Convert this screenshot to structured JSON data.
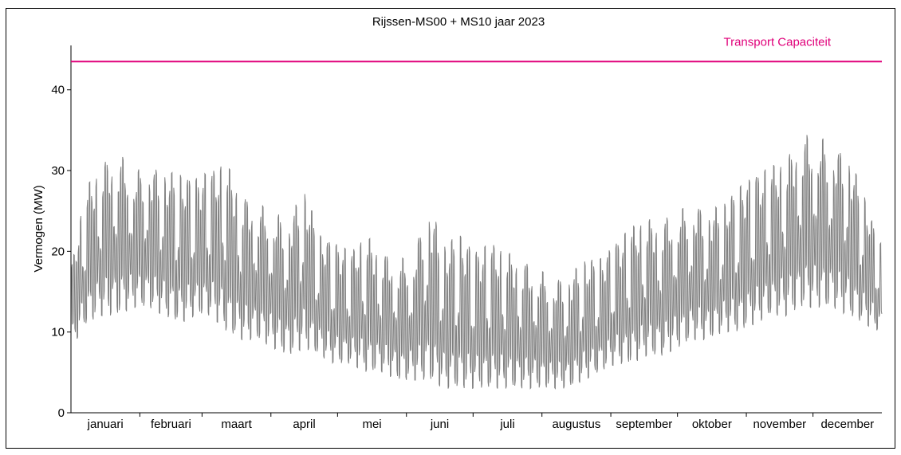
{
  "chart_data": {
    "type": "line",
    "title": "Rijssen-MS00 + MS10 jaar 2023",
    "xlabel": "",
    "ylabel": "Vermogen (MW)",
    "ylim": [
      0,
      45.5
    ],
    "yticks": [
      0,
      10,
      20,
      30,
      40
    ],
    "months": [
      "januari",
      "februari",
      "maart",
      "april",
      "mei",
      "juni",
      "juli",
      "augustus",
      "september",
      "oktober",
      "november",
      "december"
    ],
    "grid": false,
    "series": [
      {
        "name": "",
        "color": "#808080",
        "weekly_x_days": [
          0,
          7,
          14,
          21,
          28,
          35,
          42,
          49,
          56,
          63,
          70,
          77,
          84,
          91,
          98,
          105,
          112,
          119,
          126,
          133,
          140,
          147,
          154,
          161,
          168,
          175,
          182,
          189,
          196,
          203,
          210,
          217,
          224,
          231,
          238,
          245,
          252,
          259,
          266,
          273,
          280,
          287,
          294,
          301,
          308,
          315,
          322,
          329,
          336,
          343,
          350,
          357,
          364
        ],
        "weekly_peak_MW": [
          18,
          28,
          31,
          32.5,
          30,
          30.5,
          30,
          29.5,
          29,
          30,
          31,
          27,
          26,
          25,
          24,
          28,
          22,
          21,
          20,
          22,
          20,
          19,
          19.5,
          26,
          21,
          22,
          20,
          21,
          20,
          19,
          18,
          16.5,
          17,
          19,
          19,
          21,
          23,
          24,
          24,
          25,
          26,
          25,
          26,
          28,
          29.5,
          30.5,
          31.5,
          34.5,
          34.5,
          33,
          32,
          27,
          21
        ],
        "weekly_trough_MW": [
          8,
          11,
          12,
          12,
          13,
          13,
          12,
          11,
          12,
          12,
          10,
          9,
          9,
          8,
          7,
          8,
          7,
          6,
          6,
          5,
          5,
          4,
          4,
          4,
          3,
          3,
          3,
          3,
          3,
          3,
          3,
          3,
          3,
          4,
          5,
          6,
          6,
          7,
          7,
          8,
          9,
          9,
          10,
          10,
          11,
          12,
          12,
          13,
          13,
          13,
          12,
          11,
          10
        ]
      }
    ],
    "annotations": [
      {
        "label": "Transport Capaciteit",
        "y": 43.5,
        "color": "#e0007a"
      }
    ]
  }
}
